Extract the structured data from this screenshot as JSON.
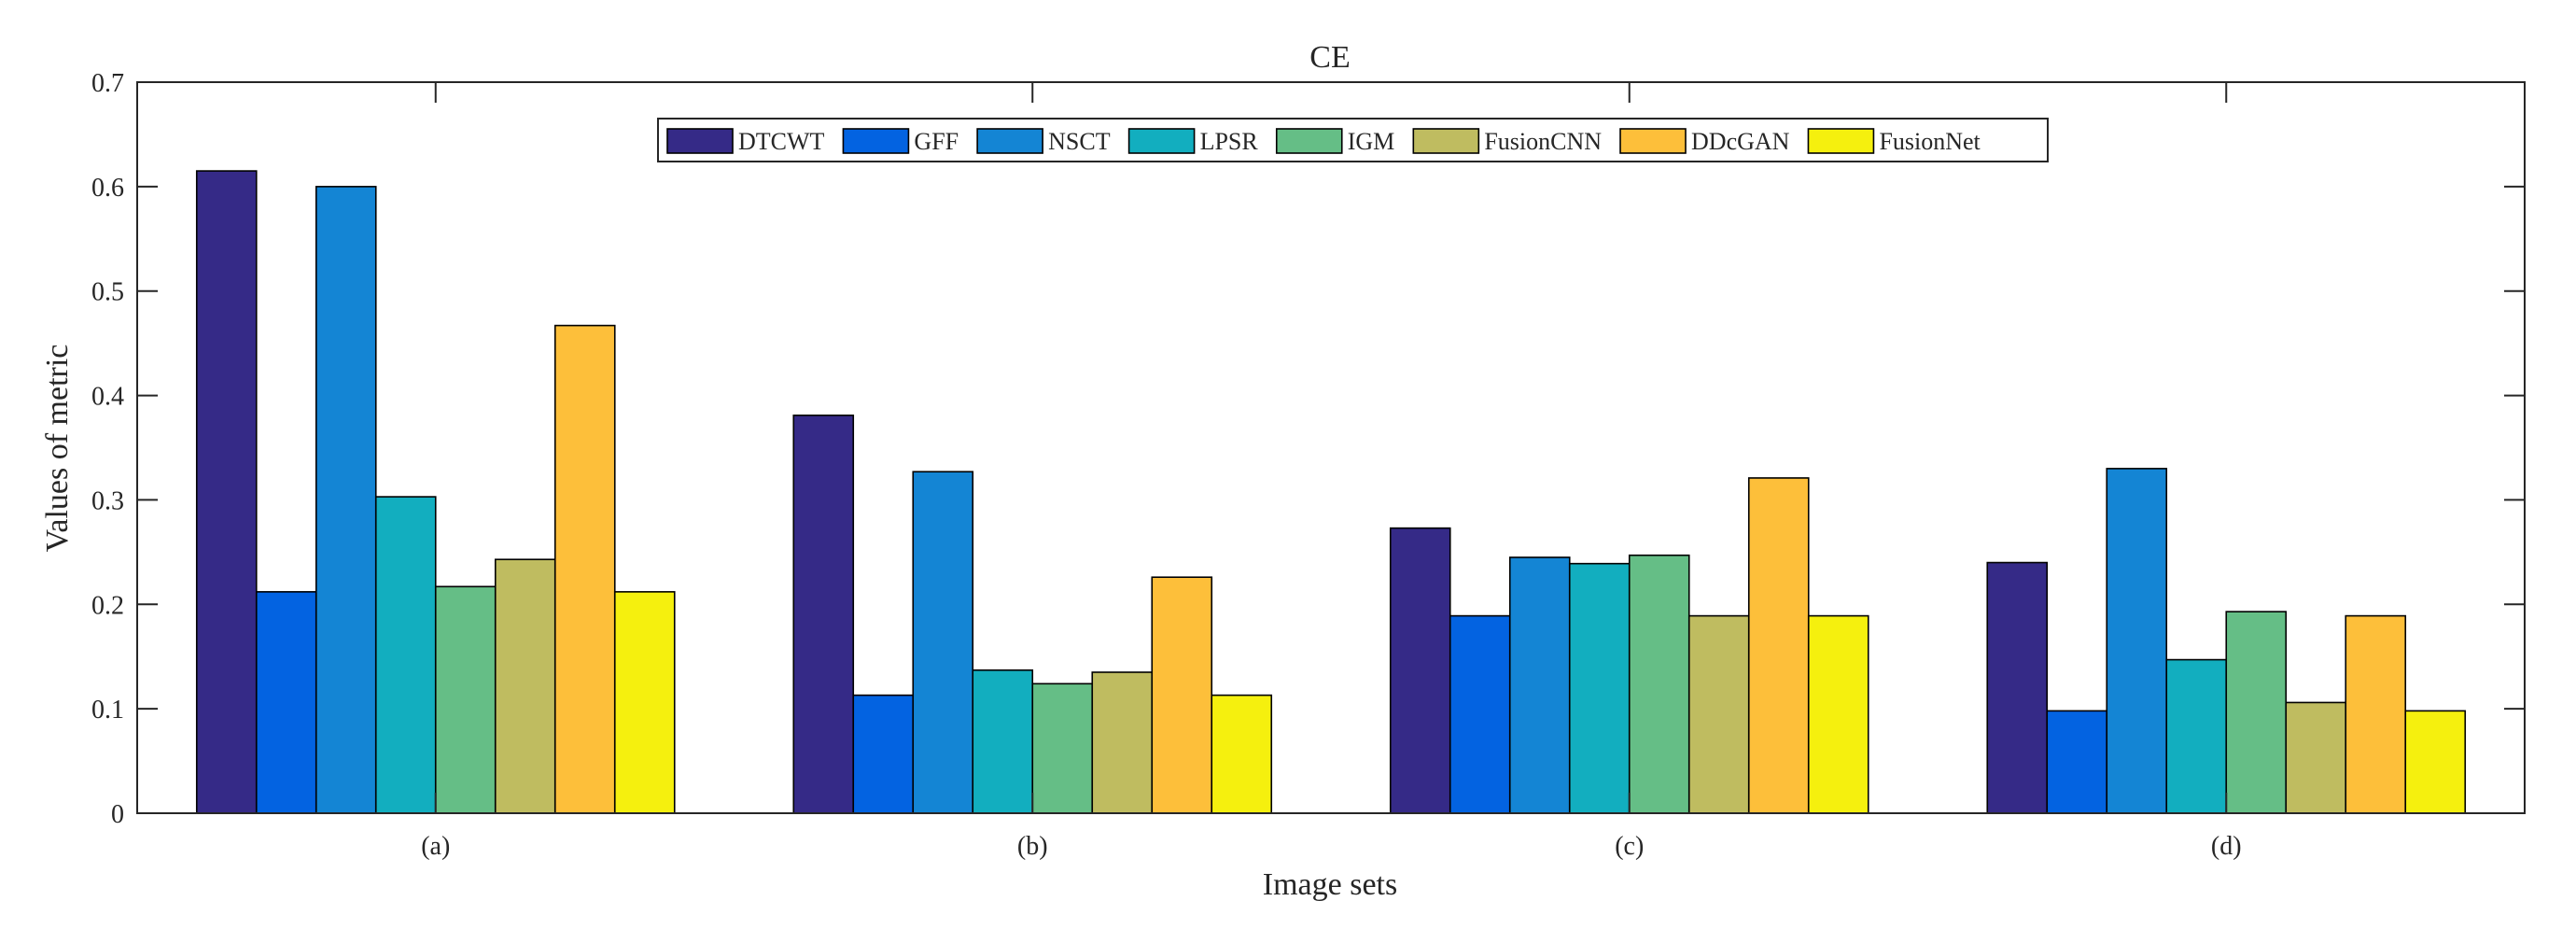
{
  "chart_data": {
    "type": "bar",
    "title": "CE",
    "xlabel": "Image sets",
    "ylabel": "Values of metric",
    "ylim": [
      0,
      0.7
    ],
    "yticks": [
      "0",
      "0.1",
      "0.2",
      "0.3",
      "0.4",
      "0.5",
      "0.6",
      "0.7"
    ],
    "categories": [
      "(a)",
      "(b)",
      "(c)",
      "(d)"
    ],
    "legend_position": "top-center",
    "series": [
      {
        "name": "DTCWT",
        "color": "#352a87",
        "values": [
          0.615,
          0.381,
          0.273,
          0.24
        ]
      },
      {
        "name": "GFF",
        "color": "#0363e1",
        "values": [
          0.212,
          0.113,
          0.189,
          0.098
        ]
      },
      {
        "name": "NSCT",
        "color": "#1485d4",
        "values": [
          0.6,
          0.327,
          0.245,
          0.33
        ]
      },
      {
        "name": "LPSR",
        "color": "#12aebf",
        "values": [
          0.303,
          0.137,
          0.239,
          0.147
        ]
      },
      {
        "name": "IGM",
        "color": "#65be86",
        "values": [
          0.217,
          0.124,
          0.247,
          0.193
        ]
      },
      {
        "name": "FusionCNN",
        "color": "#bfbc60",
        "values": [
          0.243,
          0.135,
          0.189,
          0.106
        ]
      },
      {
        "name": "DDcGAN",
        "color": "#fdbf3a",
        "values": [
          0.467,
          0.226,
          0.321,
          0.189
        ]
      },
      {
        "name": "FusionNet",
        "color": "#f5f00e",
        "values": [
          0.212,
          0.113,
          0.189,
          0.098
        ]
      }
    ]
  }
}
